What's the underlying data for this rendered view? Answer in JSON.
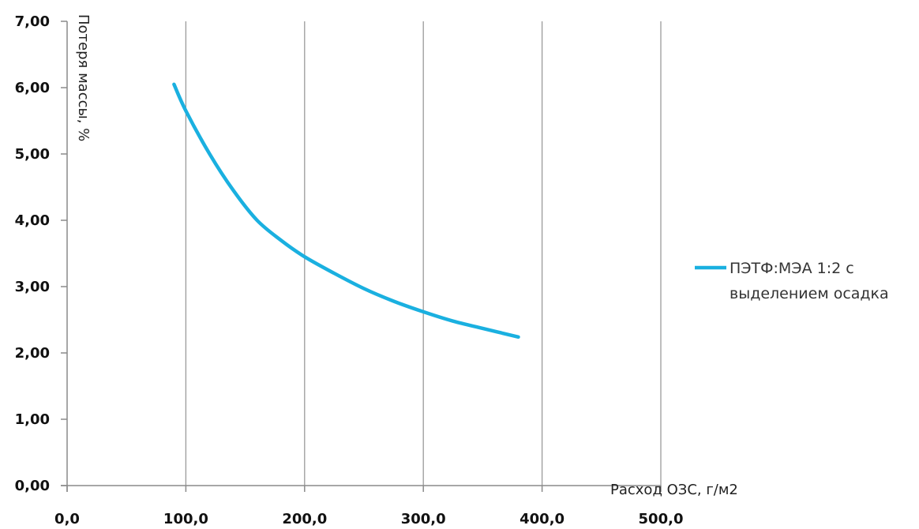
{
  "chart_data": {
    "type": "line",
    "title": "",
    "xlabel": "Расход ОЗС, г/м2",
    "ylabel": "Потеря массы, %",
    "xlim": [
      0,
      500
    ],
    "ylim": [
      0,
      7
    ],
    "x_ticks": [
      "0,0",
      "100,0",
      "200,0",
      "300,0",
      "400,0",
      "500,0"
    ],
    "y_ticks": [
      "0,00",
      "1,00",
      "2,00",
      "3,00",
      "4,00",
      "5,00",
      "6,00",
      "7,00"
    ],
    "grid": "vertical",
    "legend_position": "right",
    "series": [
      {
        "name": "ПЭТФ:МЭА 1:2 с выделением осадка",
        "legend_lines": [
          "ПЭТФ:МЭА 1:2 с",
          "выделением осадка"
        ],
        "color": "#1ab0e0",
        "x": [
          90,
          100,
          120,
          140,
          160,
          180,
          200,
          225,
          250,
          275,
          300,
          325,
          350,
          380
        ],
        "y": [
          6.05,
          5.65,
          5.0,
          4.45,
          4.0,
          3.7,
          3.45,
          3.2,
          2.97,
          2.78,
          2.62,
          2.48,
          2.37,
          2.24
        ]
      }
    ]
  }
}
